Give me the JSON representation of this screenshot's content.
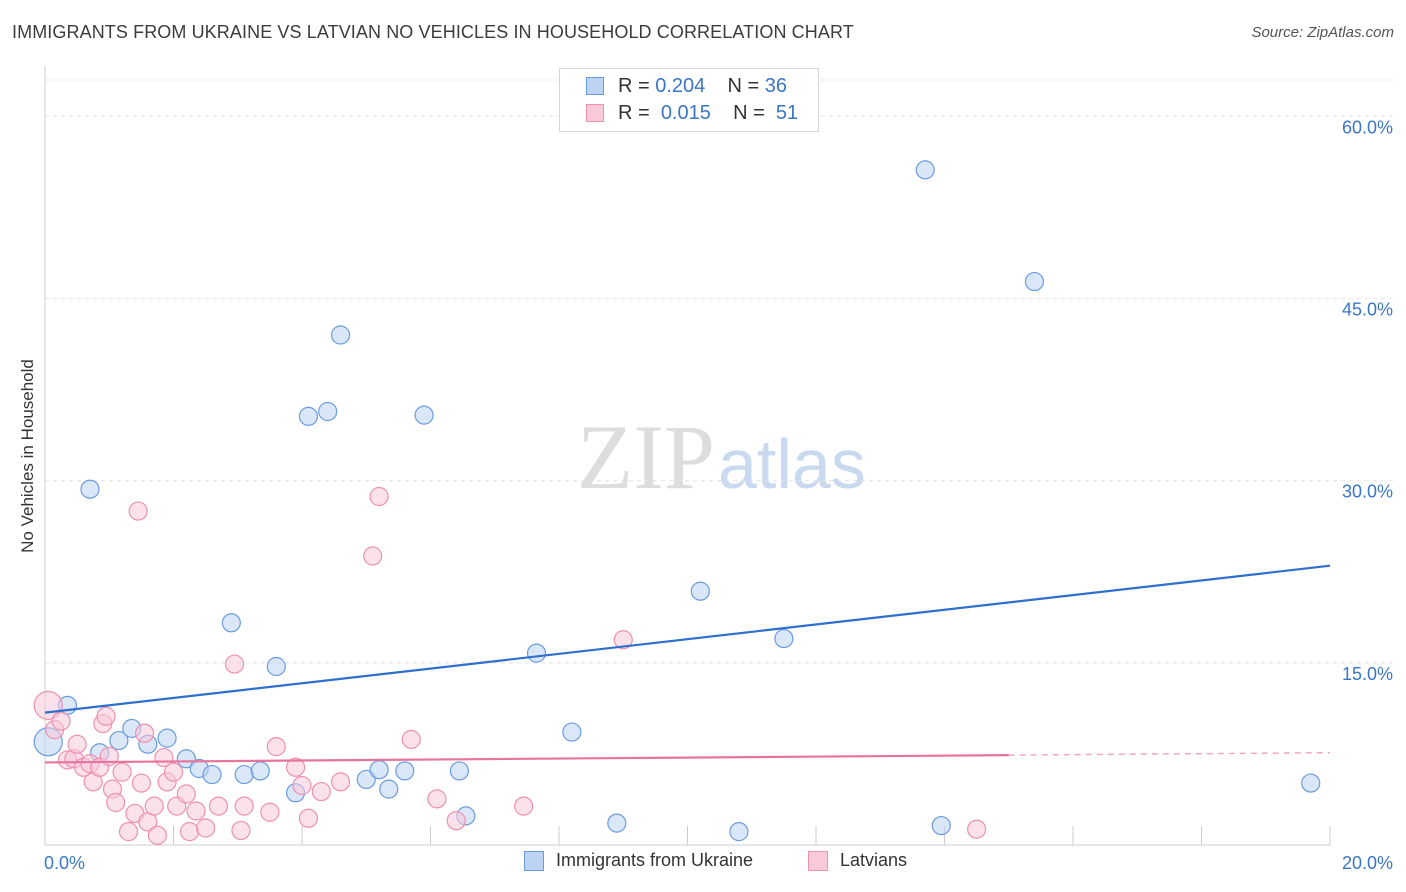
{
  "chart_data": {
    "type": "scatter",
    "title": "IMMIGRANTS FROM UKRAINE VS LATVIAN NO VEHICLES IN HOUSEHOLD CORRELATION CHART",
    "source": "Source: ZipAtlas.com",
    "xlabel": "",
    "ylabel": "No Vehicles in Household",
    "xlim": [
      0,
      20
    ],
    "ylim": [
      0,
      63
    ],
    "x_tick_labels": [
      "0.0%",
      "20.0%"
    ],
    "y_ticks": [
      15,
      30,
      45,
      60
    ],
    "y_tick_labels": [
      "15.0%",
      "30.0%",
      "45.0%",
      "60.0%"
    ],
    "watermark": {
      "zip": "ZIP",
      "atlas": "atlas"
    },
    "legend": {
      "rows": [
        {
          "r_label": "R =",
          "r_value": "0.204",
          "n_label": "N =",
          "n_value": "36"
        },
        {
          "r_label": "R =",
          "r_value": "0.015",
          "n_label": "N =",
          "n_value": "51"
        }
      ]
    },
    "series": [
      {
        "name": "Immigrants from Ukraine",
        "color": "#6a9be0",
        "fill": "#bcd3f3",
        "trend": {
          "x": [
            0,
            20
          ],
          "y": [
            10.9,
            23.0
          ],
          "dashed_from": null
        },
        "points": [
          {
            "x": 0.05,
            "y": 8.5,
            "r": 14
          },
          {
            "x": 0.35,
            "y": 11.5
          },
          {
            "x": 0.7,
            "y": 29.3
          },
          {
            "x": 0.85,
            "y": 7.6
          },
          {
            "x": 1.15,
            "y": 8.6
          },
          {
            "x": 1.35,
            "y": 9.6
          },
          {
            "x": 1.6,
            "y": 8.3
          },
          {
            "x": 1.9,
            "y": 8.8
          },
          {
            "x": 2.2,
            "y": 7.1
          },
          {
            "x": 2.4,
            "y": 6.3
          },
          {
            "x": 2.6,
            "y": 5.8
          },
          {
            "x": 2.9,
            "y": 18.3
          },
          {
            "x": 3.1,
            "y": 5.8
          },
          {
            "x": 3.35,
            "y": 6.1
          },
          {
            "x": 3.6,
            "y": 14.7
          },
          {
            "x": 3.9,
            "y": 4.3
          },
          {
            "x": 4.1,
            "y": 35.3
          },
          {
            "x": 4.4,
            "y": 35.7
          },
          {
            "x": 4.6,
            "y": 42.0
          },
          {
            "x": 5.0,
            "y": 5.4
          },
          {
            "x": 5.2,
            "y": 6.2
          },
          {
            "x": 5.35,
            "y": 4.6
          },
          {
            "x": 5.9,
            "y": 35.4
          },
          {
            "x": 5.6,
            "y": 6.1
          },
          {
            "x": 6.45,
            "y": 6.1
          },
          {
            "x": 6.55,
            "y": 2.4
          },
          {
            "x": 7.65,
            "y": 15.8
          },
          {
            "x": 8.2,
            "y": 9.3
          },
          {
            "x": 8.9,
            "y": 1.8
          },
          {
            "x": 10.2,
            "y": 20.9
          },
          {
            "x": 10.8,
            "y": 1.1
          },
          {
            "x": 11.5,
            "y": 17.0
          },
          {
            "x": 13.7,
            "y": 55.6
          },
          {
            "x": 13.95,
            "y": 1.6
          },
          {
            "x": 15.4,
            "y": 46.4
          },
          {
            "x": 19.7,
            "y": 5.1
          }
        ]
      },
      {
        "name": "Latvians",
        "color": "#ee90b0",
        "fill": "#f8c9d8",
        "trend": {
          "x": [
            0,
            15
          ],
          "y": [
            6.8,
            7.4
          ],
          "dashed_from": [
            15,
            20
          ]
        },
        "points": [
          {
            "x": 0.05,
            "y": 11.5,
            "r": 14
          },
          {
            "x": 0.15,
            "y": 9.5
          },
          {
            "x": 0.25,
            "y": 10.2
          },
          {
            "x": 0.35,
            "y": 7.0
          },
          {
            "x": 0.45,
            "y": 7.1
          },
          {
            "x": 0.5,
            "y": 8.3
          },
          {
            "x": 0.6,
            "y": 6.4
          },
          {
            "x": 0.7,
            "y": 6.7
          },
          {
            "x": 0.75,
            "y": 5.2
          },
          {
            "x": 0.85,
            "y": 6.4
          },
          {
            "x": 0.9,
            "y": 10.0
          },
          {
            "x": 0.95,
            "y": 10.6
          },
          {
            "x": 1.0,
            "y": 7.3
          },
          {
            "x": 1.05,
            "y": 4.6
          },
          {
            "x": 1.1,
            "y": 3.5
          },
          {
            "x": 1.2,
            "y": 6.0
          },
          {
            "x": 1.3,
            "y": 1.1
          },
          {
            "x": 1.4,
            "y": 2.6
          },
          {
            "x": 1.45,
            "y": 27.5
          },
          {
            "x": 1.5,
            "y": 5.1
          },
          {
            "x": 1.55,
            "y": 9.2
          },
          {
            "x": 1.6,
            "y": 1.9
          },
          {
            "x": 1.7,
            "y": 3.2
          },
          {
            "x": 1.75,
            "y": 0.8
          },
          {
            "x": 1.85,
            "y": 7.2
          },
          {
            "x": 1.9,
            "y": 5.2
          },
          {
            "x": 2.0,
            "y": 6.0
          },
          {
            "x": 2.05,
            "y": 3.2
          },
          {
            "x": 2.2,
            "y": 4.2
          },
          {
            "x": 2.25,
            "y": 1.1
          },
          {
            "x": 2.35,
            "y": 2.8
          },
          {
            "x": 2.5,
            "y": 1.4
          },
          {
            "x": 2.7,
            "y": 3.2
          },
          {
            "x": 2.95,
            "y": 14.9
          },
          {
            "x": 3.05,
            "y": 1.2
          },
          {
            "x": 3.1,
            "y": 3.2
          },
          {
            "x": 3.5,
            "y": 2.7
          },
          {
            "x": 3.6,
            "y": 8.1
          },
          {
            "x": 3.9,
            "y": 6.4
          },
          {
            "x": 4.0,
            "y": 4.9
          },
          {
            "x": 4.1,
            "y": 2.2
          },
          {
            "x": 4.3,
            "y": 4.4
          },
          {
            "x": 4.6,
            "y": 5.2
          },
          {
            "x": 5.1,
            "y": 23.8
          },
          {
            "x": 5.2,
            "y": 28.7
          },
          {
            "x": 5.7,
            "y": 8.7
          },
          {
            "x": 6.1,
            "y": 3.8
          },
          {
            "x": 6.4,
            "y": 2.0
          },
          {
            "x": 7.45,
            "y": 3.2
          },
          {
            "x": 9.0,
            "y": 16.9
          },
          {
            "x": 14.5,
            "y": 1.3
          }
        ]
      }
    ]
  }
}
